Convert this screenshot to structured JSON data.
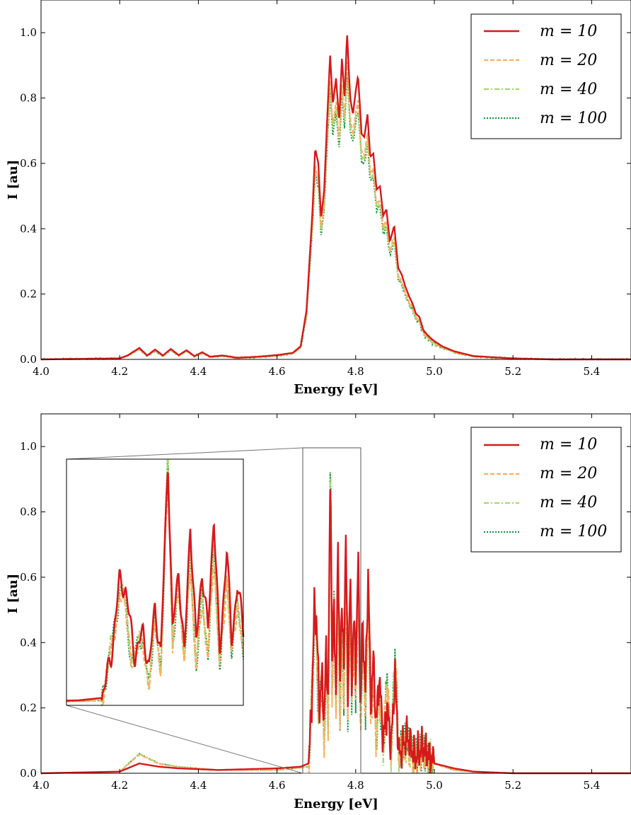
{
  "colors": {
    "m10": "#d7191c",
    "m20": "#fdae61",
    "m40": "#a6d96a",
    "m100": "#1a9641",
    "axes": "#000000",
    "inset_connector": "#777777"
  },
  "chart_data": [
    {
      "type": "line",
      "xlabel": "Energy [eV]",
      "ylabel": "I [au]",
      "xlim": [
        4.0,
        5.5
      ],
      "ylim": [
        0.0,
        1.1
      ],
      "xticks": [
        4.0,
        4.2,
        4.4,
        4.6,
        4.8,
        5.0,
        5.2,
        5.4
      ],
      "xtick_labels": [
        "4.0",
        "4.2",
        "4.4",
        "4.6",
        "4.8",
        "5.0",
        "5.2",
        "5.4"
      ],
      "yticks": [
        0.0,
        0.2,
        0.4,
        0.6,
        0.8,
        1.0
      ],
      "ytick_labels": [
        "0.0",
        "0.2",
        "0.4",
        "0.6",
        "0.8",
        "1.0"
      ],
      "grid": false,
      "legend_position": "top-right",
      "series": [
        {
          "name": "m = 10",
          "color": "#d7191c",
          "linestyle": "solid"
        },
        {
          "name": "m = 20",
          "color": "#fdae61",
          "linestyle": "dashed"
        },
        {
          "name": "m = 40",
          "color": "#a6d96a",
          "linestyle": "dashdot"
        },
        {
          "name": "m = 100",
          "color": "#1a9641",
          "linestyle": "dotted"
        }
      ],
      "envelope_points": [
        [
          4.0,
          0.0
        ],
        [
          4.2,
          0.003
        ],
        [
          4.22,
          0.012
        ],
        [
          4.25,
          0.035
        ],
        [
          4.27,
          0.012
        ],
        [
          4.29,
          0.03
        ],
        [
          4.31,
          0.012
        ],
        [
          4.33,
          0.032
        ],
        [
          4.35,
          0.013
        ],
        [
          4.37,
          0.028
        ],
        [
          4.39,
          0.01
        ],
        [
          4.41,
          0.022
        ],
        [
          4.43,
          0.008
        ],
        [
          4.46,
          0.012
        ],
        [
          4.5,
          0.005
        ],
        [
          4.55,
          0.008
        ],
        [
          4.6,
          0.013
        ],
        [
          4.64,
          0.02
        ],
        [
          4.66,
          0.04
        ],
        [
          4.675,
          0.15
        ],
        [
          4.69,
          0.45
        ],
        [
          4.697,
          0.645
        ],
        [
          4.705,
          0.6
        ],
        [
          4.712,
          0.43
        ],
        [
          4.72,
          0.52
        ],
        [
          4.728,
          0.75
        ],
        [
          4.735,
          0.93
        ],
        [
          4.742,
          0.78
        ],
        [
          4.75,
          0.86
        ],
        [
          4.758,
          0.73
        ],
        [
          4.765,
          0.92
        ],
        [
          4.772,
          0.8
        ],
        [
          4.778,
          1.0
        ],
        [
          4.786,
          0.8
        ],
        [
          4.793,
          0.75
        ],
        [
          4.8,
          0.82
        ],
        [
          4.806,
          0.87
        ],
        [
          4.815,
          0.69
        ],
        [
          4.822,
          0.68
        ],
        [
          4.83,
          0.75
        ],
        [
          4.837,
          0.62
        ],
        [
          4.845,
          0.63
        ],
        [
          4.853,
          0.52
        ],
        [
          4.862,
          0.53
        ],
        [
          4.87,
          0.44
        ],
        [
          4.878,
          0.46
        ],
        [
          4.887,
          0.36
        ],
        [
          4.898,
          0.41
        ],
        [
          4.908,
          0.28
        ],
        [
          4.917,
          0.26
        ],
        [
          4.927,
          0.22
        ],
        [
          4.937,
          0.19
        ],
        [
          4.945,
          0.17
        ],
        [
          4.953,
          0.14
        ],
        [
          4.962,
          0.13
        ],
        [
          4.972,
          0.09
        ],
        [
          4.982,
          0.075
        ],
        [
          4.995,
          0.06
        ],
        [
          5.02,
          0.04
        ],
        [
          5.05,
          0.025
        ],
        [
          5.1,
          0.01
        ],
        [
          5.2,
          0.003
        ],
        [
          5.3,
          0.0
        ],
        [
          5.5,
          0.0
        ]
      ]
    },
    {
      "type": "line",
      "xlabel": "Energy [eV]",
      "ylabel": "I [au]",
      "xlim": [
        4.0,
        5.5
      ],
      "ylim": [
        0.0,
        1.1
      ],
      "xticks": [
        4.0,
        4.2,
        4.4,
        4.6,
        4.8,
        5.0,
        5.2,
        5.4
      ],
      "xtick_labels": [
        "4.0",
        "4.2",
        "4.4",
        "4.6",
        "4.8",
        "5.0",
        "5.2",
        "5.4"
      ],
      "yticks": [
        0.0,
        0.2,
        0.4,
        0.6,
        0.8,
        1.0
      ],
      "ytick_labels": [
        "0.0",
        "0.2",
        "0.4",
        "0.6",
        "0.8",
        "1.0"
      ],
      "grid": false,
      "legend_position": "top-right",
      "series": [
        {
          "name": "m = 10",
          "color": "#d7191c",
          "linestyle": "solid"
        },
        {
          "name": "m = 20",
          "color": "#fdae61",
          "linestyle": "dashed"
        },
        {
          "name": "m = 40",
          "color": "#a6d96a",
          "linestyle": "dashdot"
        },
        {
          "name": "m = 100",
          "color": "#1a9641",
          "linestyle": "dotted"
        }
      ],
      "inset": {
        "zoom_xlim": [
          4.65,
          4.8
        ],
        "zoom_ylim": [
          0.0,
          1.0
        ],
        "position": "upper-left"
      },
      "peaks_m10": [
        [
          4.0,
          0.0
        ],
        [
          4.2,
          0.005
        ],
        [
          4.25,
          0.03
        ],
        [
          4.3,
          0.02
        ],
        [
          4.35,
          0.015
        ],
        [
          4.45,
          0.01
        ],
        [
          4.6,
          0.015
        ],
        [
          4.66,
          0.02
        ],
        [
          4.68,
          0.03
        ],
        [
          4.688,
          0.2
        ],
        [
          4.695,
          0.51
        ],
        [
          4.7,
          0.47
        ],
        [
          4.708,
          0.2
        ],
        [
          4.715,
          0.3
        ],
        [
          4.72,
          0.15
        ],
        [
          4.725,
          0.4
        ],
        [
          4.73,
          0.2
        ],
        [
          4.736,
          1.0
        ],
        [
          4.74,
          0.3
        ],
        [
          4.745,
          0.55
        ],
        [
          4.75,
          0.2
        ],
        [
          4.755,
          0.74
        ],
        [
          4.76,
          0.25
        ],
        [
          4.765,
          0.55
        ],
        [
          4.77,
          0.3
        ],
        [
          4.775,
          0.78
        ],
        [
          4.78,
          0.2
        ],
        [
          4.786,
          0.65
        ],
        [
          4.79,
          0.25
        ],
        [
          4.795,
          0.5
        ],
        [
          4.8,
          0.3
        ],
        [
          4.806,
          0.68
        ],
        [
          4.812,
          0.2
        ],
        [
          4.818,
          0.45
        ],
        [
          4.825,
          0.25
        ],
        [
          4.832,
          0.64
        ],
        [
          4.838,
          0.2
        ],
        [
          4.845,
          0.35
        ],
        [
          4.852,
          0.15
        ],
        [
          4.86,
          0.3
        ],
        [
          4.87,
          0.1
        ],
        [
          4.88,
          0.2
        ],
        [
          4.89,
          0.08
        ],
        [
          4.9,
          0.3
        ],
        [
          4.91,
          0.05
        ],
        [
          4.93,
          0.12
        ],
        [
          4.95,
          0.05
        ],
        [
          4.97,
          0.08
        ],
        [
          5.0,
          0.03
        ],
        [
          5.05,
          0.015
        ],
        [
          5.1,
          0.005
        ],
        [
          5.2,
          0.0
        ],
        [
          5.5,
          0.0
        ]
      ],
      "peaks_m100": [
        [
          4.0,
          0.0
        ],
        [
          4.2,
          0.005
        ],
        [
          4.25,
          0.06
        ],
        [
          4.3,
          0.03
        ],
        [
          4.35,
          0.02
        ],
        [
          4.45,
          0.01
        ],
        [
          4.6,
          0.01
        ],
        [
          4.68,
          0.02
        ],
        [
          4.69,
          0.3
        ],
        [
          4.695,
          0.45
        ],
        [
          4.7,
          0.45
        ],
        [
          4.705,
          0.15
        ],
        [
          4.712,
          0.3
        ],
        [
          4.72,
          0.1
        ],
        [
          4.725,
          0.35
        ],
        [
          4.73,
          0.15
        ],
        [
          4.736,
          1.0
        ],
        [
          4.74,
          0.25
        ],
        [
          4.745,
          0.5
        ],
        [
          4.75,
          0.2
        ],
        [
          4.755,
          0.6
        ],
        [
          4.76,
          0.15
        ],
        [
          4.765,
          0.45
        ],
        [
          4.77,
          0.2
        ],
        [
          4.775,
          0.65
        ],
        [
          4.78,
          0.15
        ],
        [
          4.786,
          0.55
        ],
        [
          4.79,
          0.2
        ],
        [
          4.795,
          0.45
        ],
        [
          4.8,
          0.2
        ],
        [
          4.806,
          0.6
        ],
        [
          4.812,
          0.15
        ],
        [
          4.818,
          0.4
        ],
        [
          4.825,
          0.2
        ],
        [
          4.832,
          0.55
        ],
        [
          4.838,
          0.15
        ],
        [
          4.845,
          0.3
        ],
        [
          4.852,
          0.1
        ],
        [
          4.86,
          0.25
        ],
        [
          4.87,
          0.08
        ],
        [
          4.88,
          0.3
        ],
        [
          4.89,
          0.05
        ],
        [
          4.9,
          0.38
        ],
        [
          4.91,
          0.05
        ],
        [
          4.93,
          0.1
        ],
        [
          4.95,
          0.05
        ],
        [
          4.97,
          0.07
        ],
        [
          5.0,
          0.03
        ],
        [
          5.05,
          0.01
        ],
        [
          5.1,
          0.005
        ],
        [
          5.2,
          0.0
        ],
        [
          5.5,
          0.0
        ]
      ]
    }
  ]
}
